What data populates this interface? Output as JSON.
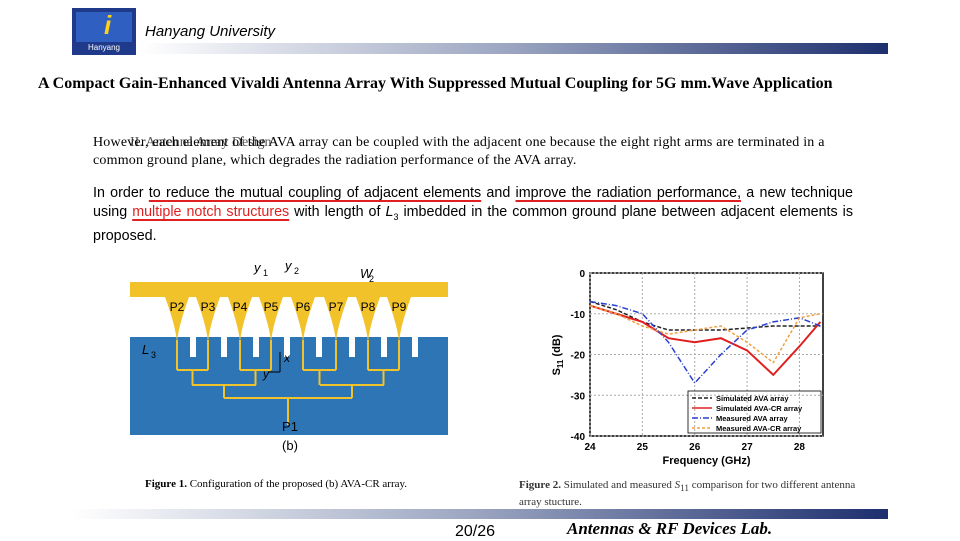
{
  "header": {
    "institution": "Hanyang University",
    "logo_text": "Hanyang"
  },
  "title": "A Compact Gain-Enhanced Vivaldi Antenna Array With Suppressed Mutual Coupling for 5G mm.Wave Application",
  "section_heading": "II. Antenna Array Design",
  "paragraph1": "However, each element of the AVA array can be coupled with the adjacent one because the eight right arms are terminated in a common ground plane, which degrades the radiation performance of the AVA array.",
  "paragraph2": [
    "In order ",
    "to reduce the mutual coupling of adjacent elements",
    " and ",
    "improve the radiation performance,",
    " a new technique using ",
    "multiple notch structures",
    " with length of ",
    "L",
    "3",
    " imbedded in the common ground plane between adjacent elements is proposed."
  ],
  "figure1": {
    "ports": [
      "P2",
      "P3",
      "P4",
      "P5",
      "P6",
      "P7",
      "P8",
      "P9"
    ],
    "feed_port": "P1",
    "sublabel": "(b)",
    "dims": [
      {
        "name": "y",
        "sub": "1"
      },
      {
        "name": "y",
        "sub": "2"
      },
      {
        "name": "W",
        "sub": "2"
      },
      {
        "name": "L",
        "sub": "3"
      }
    ],
    "axes": [
      "x",
      "y"
    ],
    "caption_label": "Figure 1.",
    "caption": " Configuration of the proposed (b) AVA-CR array."
  },
  "figure2": {
    "type": "line",
    "x_label": "Frequency (GHz)",
    "y_label": "S",
    "y_label_sub": "11",
    "y_label_unit": " (dB)",
    "x": [
      24,
      24.5,
      25,
      25.5,
      26,
      26.5,
      27,
      27.5,
      28,
      28.4
    ],
    "xlim": [
      24,
      28.45
    ],
    "xticks": [
      24,
      25,
      26,
      27,
      28
    ],
    "ylim": [
      -40,
      0
    ],
    "yticks": [
      0,
      -10,
      -20,
      -30,
      -40
    ],
    "series": [
      {
        "name": "Simulated AVA array",
        "color": "#222222",
        "dash": "4,2",
        "values": [
          -7,
          -9,
          -12,
          -14,
          -14,
          -14,
          -13.5,
          -13,
          -13,
          -13
        ]
      },
      {
        "name": "Simulated AVA-CR array",
        "color": "#e02020",
        "dash": "",
        "values": [
          -8,
          -10,
          -12,
          -16,
          -17,
          -16,
          -19,
          -25,
          -18,
          -12
        ]
      },
      {
        "name": "Measured AVA array",
        "color": "#2a3fd0",
        "dash": "6,2,1,2",
        "values": [
          -7,
          -8,
          -10,
          -17,
          -27,
          -20,
          -14,
          -12,
          -11,
          -13
        ]
      },
      {
        "name": "Measured AVA-CR array",
        "color": "#f0a040",
        "dash": "3,2",
        "values": [
          -8,
          -10,
          -13,
          -15,
          -14,
          -13,
          -17,
          -22,
          -11,
          -10
        ]
      }
    ],
    "caption_label": "Figure 2.",
    "caption_pre": " Simulated and measured ",
    "caption_s": "S",
    "caption_sub": "11",
    "caption_post": " comparison for two different antenna array stucture."
  },
  "footer": {
    "page": "20/26",
    "lab": "Antennas & RF Devices Lab."
  }
}
